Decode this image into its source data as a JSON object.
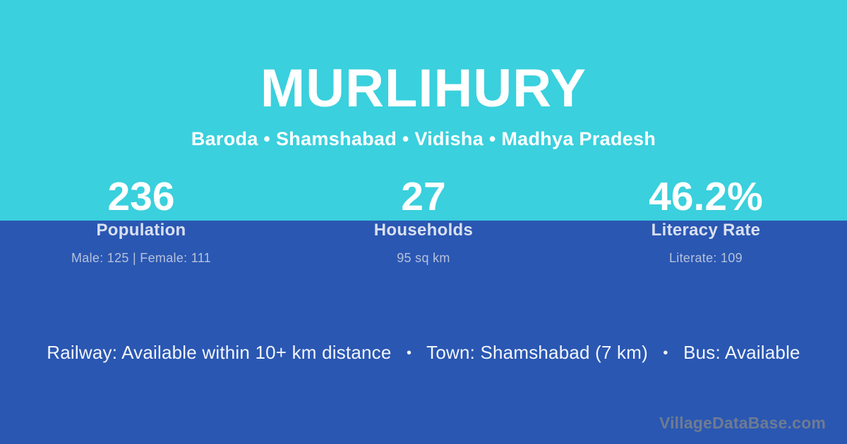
{
  "colors": {
    "top_bg": "#3ad0dd",
    "bottom_bg": "#2a57b2",
    "title_text": "#ffffff",
    "label_text": "#d9e0f1",
    "detail_text": "#b6c1db",
    "amenities_text": "#f2f5fb",
    "watermark_text": "#6f7b92"
  },
  "header": {
    "title": "MURLIHURY",
    "subtitle": "Baroda • Shamshabad • Vidisha • Madhya Pradesh"
  },
  "stats": [
    {
      "value": "236",
      "label": "Population",
      "detail": "Male: 125 | Female: 111"
    },
    {
      "value": "27",
      "label": "Households",
      "detail": "95 sq km"
    },
    {
      "value": "46.2%",
      "label": "Literacy Rate",
      "detail": "Literate: 109"
    }
  ],
  "amenities": {
    "separator": "•",
    "items": [
      "Railway: Available within 10+ km distance",
      "Town: Shamshabad (7 km)",
      "Bus: Available"
    ]
  },
  "watermark": "VillageDataBase.com"
}
